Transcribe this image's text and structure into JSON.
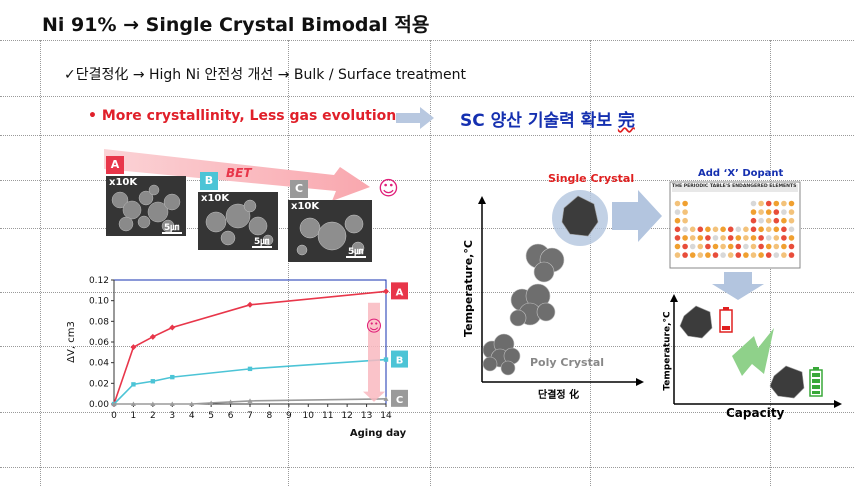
{
  "slide": {
    "title": "Ni 91% → Single Crystal Bimodal 적용",
    "subtitle": "✓단결정化 → High Ni 안전성 개선 → Bulk / Surface treatment",
    "bullet": "•  More crystallinity, Less gas evolution",
    "sc_title_prefix": "SC 양산 기술력 확보 ",
    "sc_title_mark": "完",
    "colors": {
      "red": "#e8364a",
      "cyan": "#4cc4d6",
      "gray": "#9a9a9a",
      "blue_title": "#1530b0"
    }
  },
  "sem": {
    "bet_label": "BET",
    "smiley": "☺",
    "panels": [
      {
        "tag": "A",
        "mag": "x10K",
        "scale": "5㎛",
        "color": "#e8364a"
      },
      {
        "tag": "B",
        "mag": "x10K",
        "scale": "5㎛",
        "color": "#4cc4d6"
      },
      {
        "tag": "C",
        "mag": "x10K",
        "scale": "5㎛",
        "color": "#9a9a9a"
      }
    ]
  },
  "chart_data": {
    "type": "line",
    "x": [
      0,
      1,
      2,
      3,
      4,
      5,
      6,
      7,
      8,
      9,
      10,
      11,
      12,
      13,
      14
    ],
    "xticks": [
      "0",
      "1",
      "2",
      "3",
      "4",
      "5",
      "6",
      "7",
      "8",
      "9",
      "10",
      "11",
      "12",
      "13",
      "14"
    ],
    "xlabel": "Aging day",
    "ylabel": "ΔV, cm3",
    "ylim": [
      0,
      0.12
    ],
    "yticks": [
      "0.00",
      "0.02",
      "0.04",
      "0.06",
      "0.08",
      "0.10",
      "0.12"
    ],
    "smiley": "☺",
    "series": [
      {
        "name": "A",
        "color": "#e8364a",
        "points": [
          [
            0,
            0
          ],
          [
            1,
            0.055
          ],
          [
            2,
            0.065
          ],
          [
            3,
            0.074
          ],
          [
            7,
            0.096
          ],
          [
            14,
            0.109
          ]
        ]
      },
      {
        "name": "B",
        "color": "#4cc4d6",
        "points": [
          [
            0,
            0
          ],
          [
            1,
            0.019
          ],
          [
            2,
            0.022
          ],
          [
            3,
            0.026
          ],
          [
            7,
            0.034
          ],
          [
            14,
            0.043
          ]
        ]
      },
      {
        "name": "C",
        "color": "#9a9a9a",
        "points": [
          [
            0,
            0
          ],
          [
            1,
            0
          ],
          [
            2,
            0
          ],
          [
            3,
            0
          ],
          [
            4,
            0
          ],
          [
            5,
            0.001
          ],
          [
            6,
            0.002
          ],
          [
            7,
            0.003
          ],
          [
            14,
            0.005
          ]
        ]
      }
    ]
  },
  "diagram": {
    "single_crystal_label": "Single Crystal",
    "poly_crystal_label": "Poly Crystal",
    "y_axis_label": "Temperature,°C",
    "x_axis_label": "단결정 化",
    "dopant_label": "Add ‘X’ Dopant",
    "periodic_title": "THE PERIODIC TABLE'S ENDANGERED ELEMENTS",
    "capacity_label": "Capacity",
    "temp_label_2": "Temperature,°C"
  }
}
